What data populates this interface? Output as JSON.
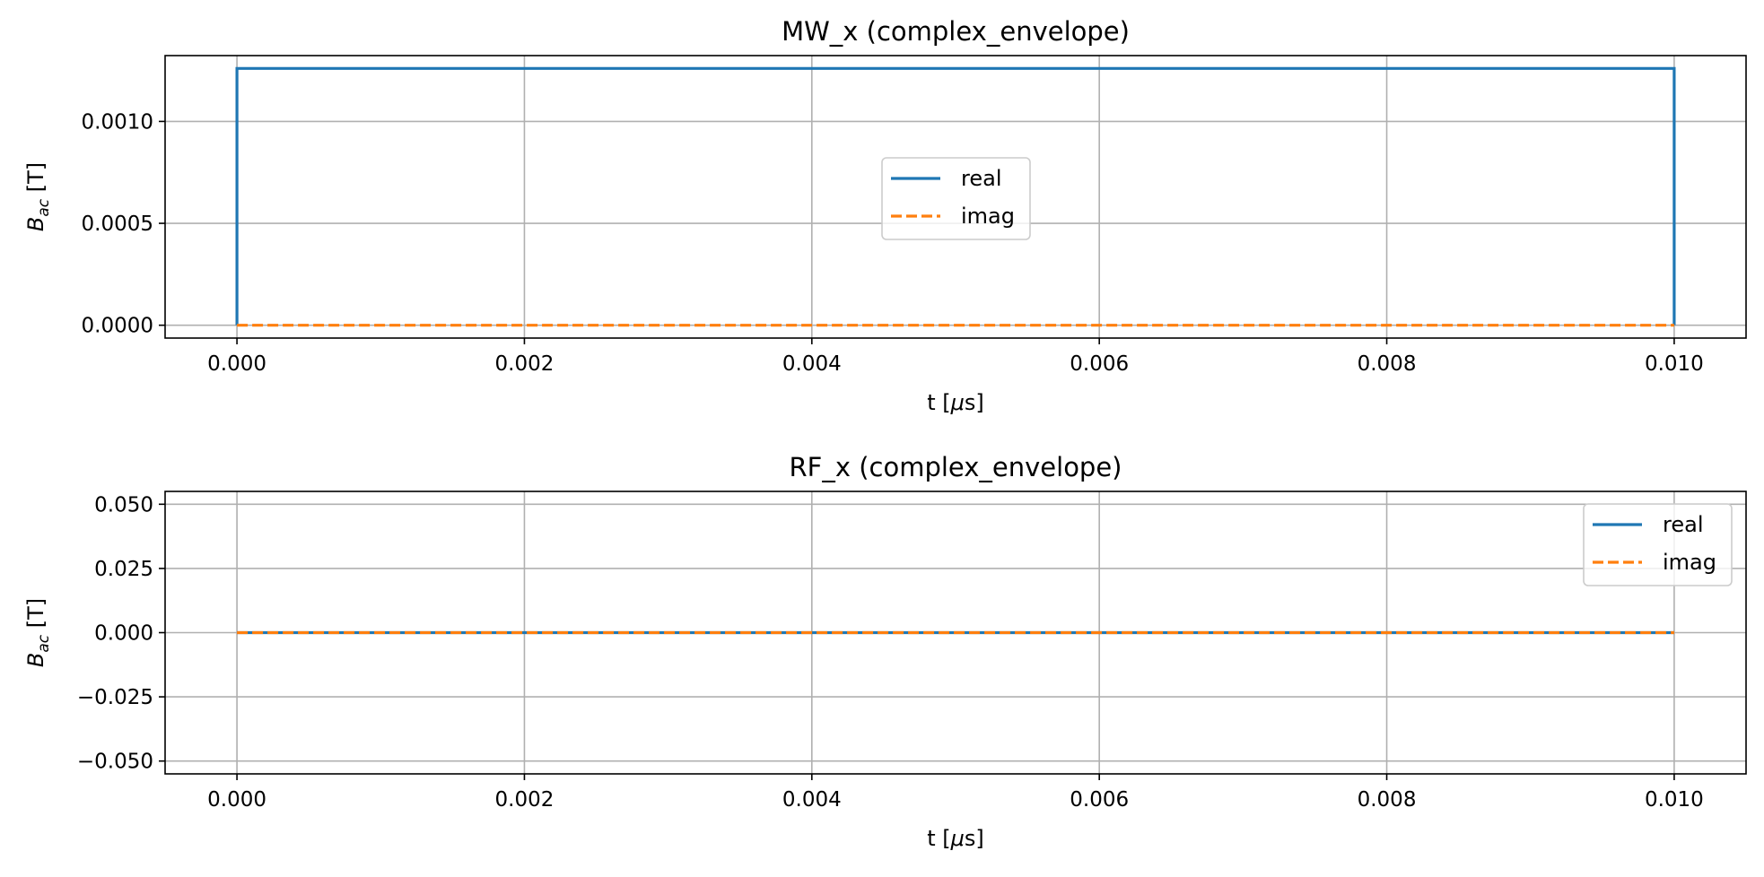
{
  "chart_data": [
    {
      "type": "line",
      "title": "MW_x (complex_envelope)",
      "xlabel": "t [μs]",
      "ylabel": "B_ac [T]",
      "xlim": [
        -0.0005,
        0.0105
      ],
      "ylim": [
        -6.3e-05,
        0.001323
      ],
      "xticks": [
        0.0,
        0.002,
        0.004,
        0.006,
        0.008,
        0.01
      ],
      "xtick_labels": [
        "0.000",
        "0.002",
        "0.004",
        "0.006",
        "0.008",
        "0.010"
      ],
      "yticks": [
        0.0,
        0.0005,
        0.001
      ],
      "ytick_labels": [
        "0.0000",
        "0.0005",
        "0.0010"
      ],
      "grid": true,
      "legend_position": "center",
      "series": [
        {
          "name": "real",
          "color": "#1f77b4",
          "dash": "solid",
          "x": [
            0.0,
            0.0,
            0.01,
            0.01
          ],
          "y": [
            0.0,
            0.00126,
            0.00126,
            0.0
          ]
        },
        {
          "name": "imag",
          "color": "#ff7f0e",
          "dash": "dashed",
          "x": [
            0.0,
            0.01
          ],
          "y": [
            0.0,
            0.0
          ]
        }
      ]
    },
    {
      "type": "line",
      "title": "RF_x (complex_envelope)",
      "xlabel": "t [μs]",
      "ylabel": "B_ac [T]",
      "xlim": [
        -0.0005,
        0.0105
      ],
      "ylim": [
        -0.055,
        0.055
      ],
      "xticks": [
        0.0,
        0.002,
        0.004,
        0.006,
        0.008,
        0.01
      ],
      "xtick_labels": [
        "0.000",
        "0.002",
        "0.004",
        "0.006",
        "0.008",
        "0.010"
      ],
      "yticks": [
        -0.05,
        -0.025,
        0.0,
        0.025,
        0.05
      ],
      "ytick_labels": [
        "−0.050",
        "−0.025",
        "0.000",
        "0.025",
        "0.050"
      ],
      "grid": true,
      "legend_position": "upper right",
      "series": [
        {
          "name": "real",
          "color": "#1f77b4",
          "dash": "solid",
          "x": [
            0.0,
            0.01
          ],
          "y": [
            0.0,
            0.0
          ]
        },
        {
          "name": "imag",
          "color": "#ff7f0e",
          "dash": "dashed",
          "x": [
            0.0,
            0.01
          ],
          "y": [
            0.0,
            0.0
          ]
        }
      ]
    }
  ]
}
